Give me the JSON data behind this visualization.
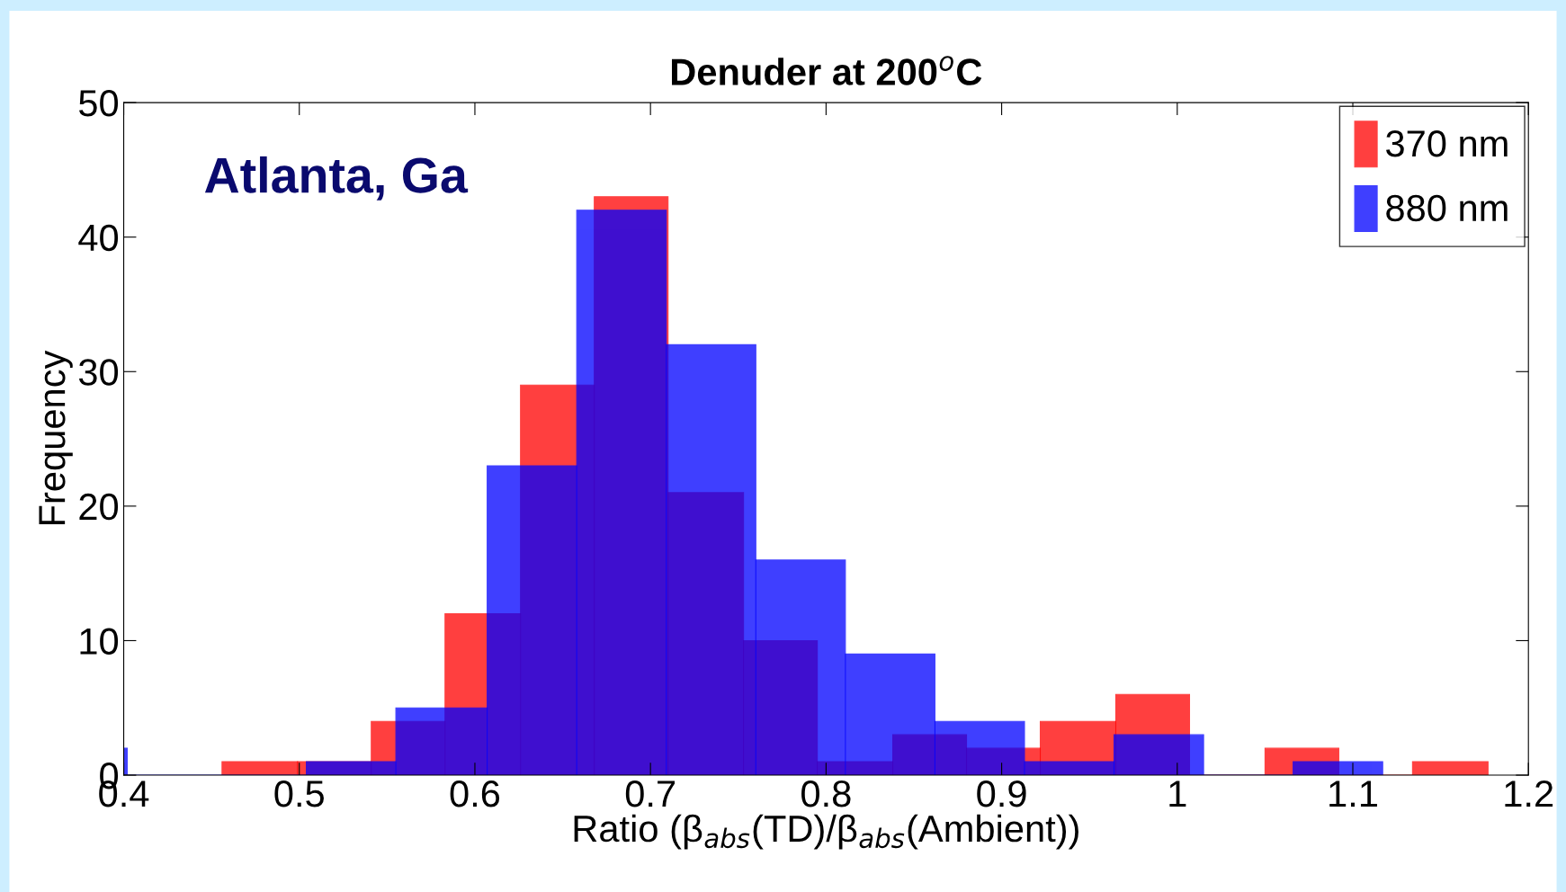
{
  "chart_data": {
    "type": "histogram",
    "title": "Denuder at 200$^{o}$C",
    "xlabel": "Ratio (β$_{abs}$(TD)/β$_{abs}$(Ambient))",
    "ylabel": "Frequency",
    "annotations": [
      "Atlanta, Ga"
    ],
    "bins": [
      0.456,
      0.499,
      0.541,
      0.583,
      0.626,
      0.668,
      0.71,
      0.753,
      0.795,
      0.838,
      0.88,
      0.922,
      0.965,
      1.007,
      1.05,
      1.092,
      1.134,
      1.177
    ],
    "series": [
      {
        "name": "370 nm",
        "color": "#ff0000",
        "values": [
          1,
          1,
          4,
          12,
          29,
          43,
          21,
          10,
          1,
          3,
          2,
          4,
          6,
          0,
          2,
          0,
          1
        ]
      },
      {
        "name": "880 nm",
        "color": "#0000ff",
        "bins": [
          0.4,
          0.402,
          0.453,
          0.504,
          0.555,
          0.607,
          0.658,
          0.709,
          0.76,
          0.811,
          0.862,
          0.913,
          0.964,
          1.015,
          1.066,
          1.117
        ],
        "values": [
          2,
          0,
          0,
          1,
          5,
          23,
          42,
          32,
          16,
          9,
          4,
          1,
          3,
          0,
          1
        ]
      }
    ],
    "xlim": [
      0.4,
      1.2
    ],
    "xticks": [
      0.4,
      0.5,
      0.6,
      0.7,
      0.8,
      0.9,
      1,
      1.1,
      1.2
    ],
    "ylim": [
      0,
      50
    ],
    "yticks": [
      0,
      10,
      20,
      30,
      40,
      50
    ],
    "grid": false,
    "legend": "top right"
  }
}
